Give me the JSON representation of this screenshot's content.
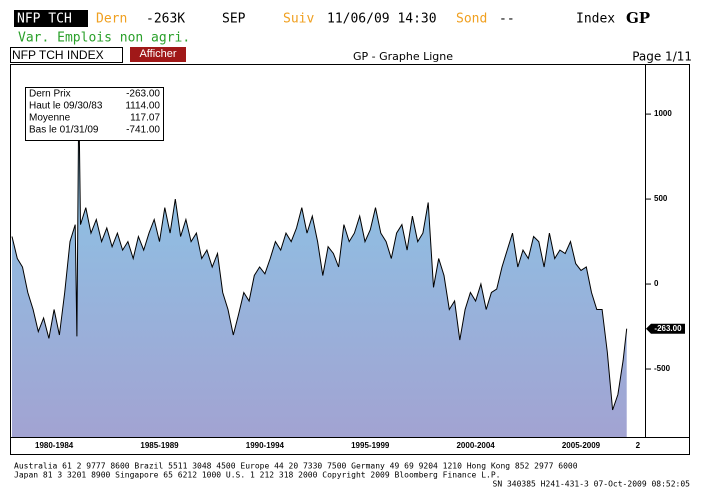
{
  "header": {
    "ticker": "NFP TCH",
    "last_label": "Dern",
    "last_value": "-263K",
    "period": "SEP",
    "next_label": "Suiv",
    "next_date": "11/06/09 14:30",
    "survey_label": "Sond",
    "survey_value": "--",
    "index_label": "Index",
    "function": "GP",
    "description": "Var. Emplois non agri."
  },
  "toolbar": {
    "security": "NFP TCH INDEX",
    "button": "Afficher",
    "title": "GP - Graphe Ligne",
    "page": "Page 1/11"
  },
  "info_box": [
    {
      "label": "Dern Prix",
      "value": "-263.00"
    },
    {
      "label": "Haut le 09/30/83",
      "value": "1114.00"
    },
    {
      "label": "Moyenne",
      "value": "117.07"
    },
    {
      "label": "Bas le 01/31/09",
      "value": "-741.00"
    }
  ],
  "chart_data": {
    "type": "area",
    "x": [
      1980.5,
      1980.75,
      1981.0,
      1981.25,
      1981.5,
      1981.75,
      1982.0,
      1982.25,
      1982.5,
      1982.75,
      1983.0,
      1983.25,
      1983.5,
      1983.58,
      1983.67,
      1983.75,
      1984.0,
      1984.25,
      1984.5,
      1984.75,
      1985.0,
      1985.25,
      1985.5,
      1985.75,
      1986.0,
      1986.25,
      1986.5,
      1986.75,
      1987.0,
      1987.25,
      1987.5,
      1987.75,
      1988.0,
      1988.25,
      1988.5,
      1988.75,
      1989.0,
      1989.25,
      1989.5,
      1989.75,
      1990.0,
      1990.25,
      1990.5,
      1990.75,
      1991.0,
      1991.25,
      1991.5,
      1991.75,
      1992.0,
      1992.25,
      1992.5,
      1992.75,
      1993.0,
      1993.25,
      1993.5,
      1993.75,
      1994.0,
      1994.25,
      1994.5,
      1994.75,
      1995.0,
      1995.25,
      1995.5,
      1995.75,
      1996.0,
      1996.25,
      1996.5,
      1996.75,
      1997.0,
      1997.25,
      1997.5,
      1997.75,
      1998.0,
      1998.25,
      1998.5,
      1998.75,
      1999.0,
      1999.25,
      1999.5,
      1999.75,
      2000.0,
      2000.25,
      2000.5,
      2000.75,
      2001.0,
      2001.25,
      2001.5,
      2001.75,
      2002.0,
      2002.25,
      2002.5,
      2002.75,
      2003.0,
      2003.25,
      2003.5,
      2003.75,
      2004.0,
      2004.25,
      2004.5,
      2004.75,
      2005.0,
      2005.25,
      2005.5,
      2005.75,
      2006.0,
      2006.25,
      2006.5,
      2006.75,
      2007.0,
      2007.25,
      2007.5,
      2007.75,
      2008.0,
      2008.25,
      2008.5,
      2008.75,
      2009.0,
      2009.25,
      2009.5,
      2009.67
    ],
    "values": [
      280,
      150,
      100,
      -50,
      -150,
      -280,
      -200,
      -320,
      -150,
      -300,
      -50,
      250,
      350,
      -308,
      1114,
      350,
      450,
      300,
      380,
      250,
      330,
      220,
      300,
      200,
      250,
      150,
      280,
      200,
      300,
      380,
      250,
      450,
      300,
      500,
      280,
      380,
      250,
      300,
      150,
      200,
      100,
      180,
      -50,
      -150,
      -300,
      -180,
      -50,
      -100,
      50,
      100,
      60,
      150,
      250,
      200,
      300,
      250,
      330,
      450,
      300,
      400,
      250,
      50,
      220,
      180,
      100,
      350,
      250,
      300,
      400,
      250,
      320,
      450,
      300,
      250,
      150,
      300,
      350,
      200,
      400,
      250,
      300,
      480,
      -20,
      150,
      50,
      -150,
      -100,
      -330,
      -150,
      -50,
      -100,
      0,
      -150,
      -50,
      -30,
      100,
      200,
      300,
      100,
      200,
      150,
      280,
      250,
      100,
      300,
      150,
      200,
      180,
      250,
      120,
      80,
      100,
      -50,
      -150,
      -150,
      -400,
      -741,
      -650,
      -450,
      -263
    ],
    "xlim": [
      1980.5,
      2010.3
    ],
    "ylim": [
      -900,
      1230
    ],
    "yticks": [
      1000,
      500,
      0,
      -500
    ],
    "xticks": [
      {
        "value": 1982.5,
        "label": "1980-1984"
      },
      {
        "value": 1987.5,
        "label": "1985-1989"
      },
      {
        "value": 1992.5,
        "label": "1990-1994"
      },
      {
        "value": 1997.5,
        "label": "1995-1999"
      },
      {
        "value": 2002.5,
        "label": "2000-2004"
      },
      {
        "value": 2007.5,
        "label": "2005-2009"
      },
      {
        "value": 2010.2,
        "label": "2"
      }
    ],
    "annotations": [
      {
        "value": -263,
        "label": "-263.00"
      }
    ],
    "color": "#000000"
  },
  "footer": [
    "Australia 61 2 9777 8600 Brazil 5511 3048 4500 Europe 44 20 7330 7500 Germany 49 69 9204 1210 Hong Kong 852 2977 6000",
    "Japan 81 3 3201 8900          Singapore 65 6212 1000          U.S. 1 212 318 2000          Copyright 2009 Bloomberg Finance L.P.",
    "SN 340385 H241-431-3 07-Oct-2009 08:52:05"
  ]
}
